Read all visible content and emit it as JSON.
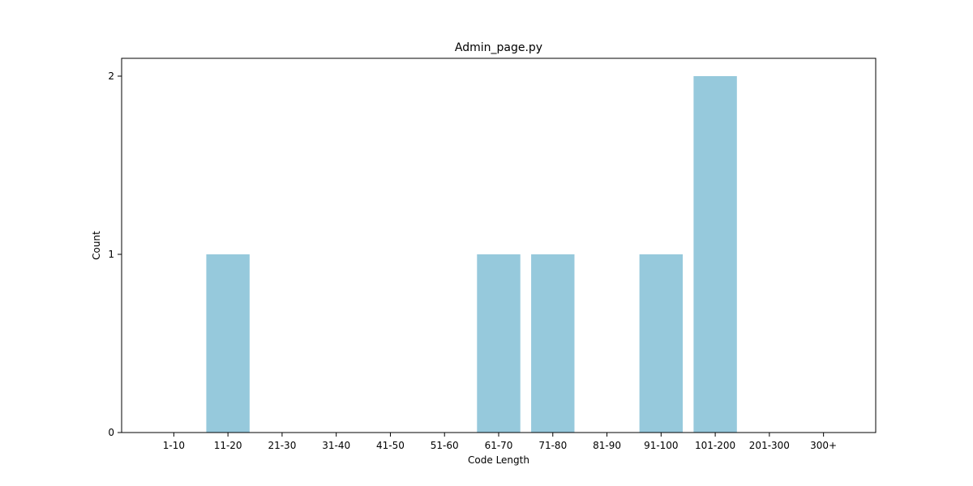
{
  "chart_data": {
    "type": "bar",
    "title": "Admin_page.py",
    "xlabel": "Code Length",
    "ylabel": "Count",
    "categories": [
      "1-10",
      "11-20",
      "21-30",
      "31-40",
      "41-50",
      "51-60",
      "61-70",
      "71-80",
      "81-90",
      "91-100",
      "101-200",
      "201-300",
      "300+"
    ],
    "values": [
      0,
      1,
      0,
      0,
      0,
      0,
      1,
      1,
      0,
      1,
      2,
      0,
      0
    ],
    "yticks": [
      "0",
      "1",
      "2"
    ],
    "ylim": [
      0,
      2.1
    ],
    "grid": false,
    "legend": "none",
    "bar_color": "#96c9dc"
  }
}
